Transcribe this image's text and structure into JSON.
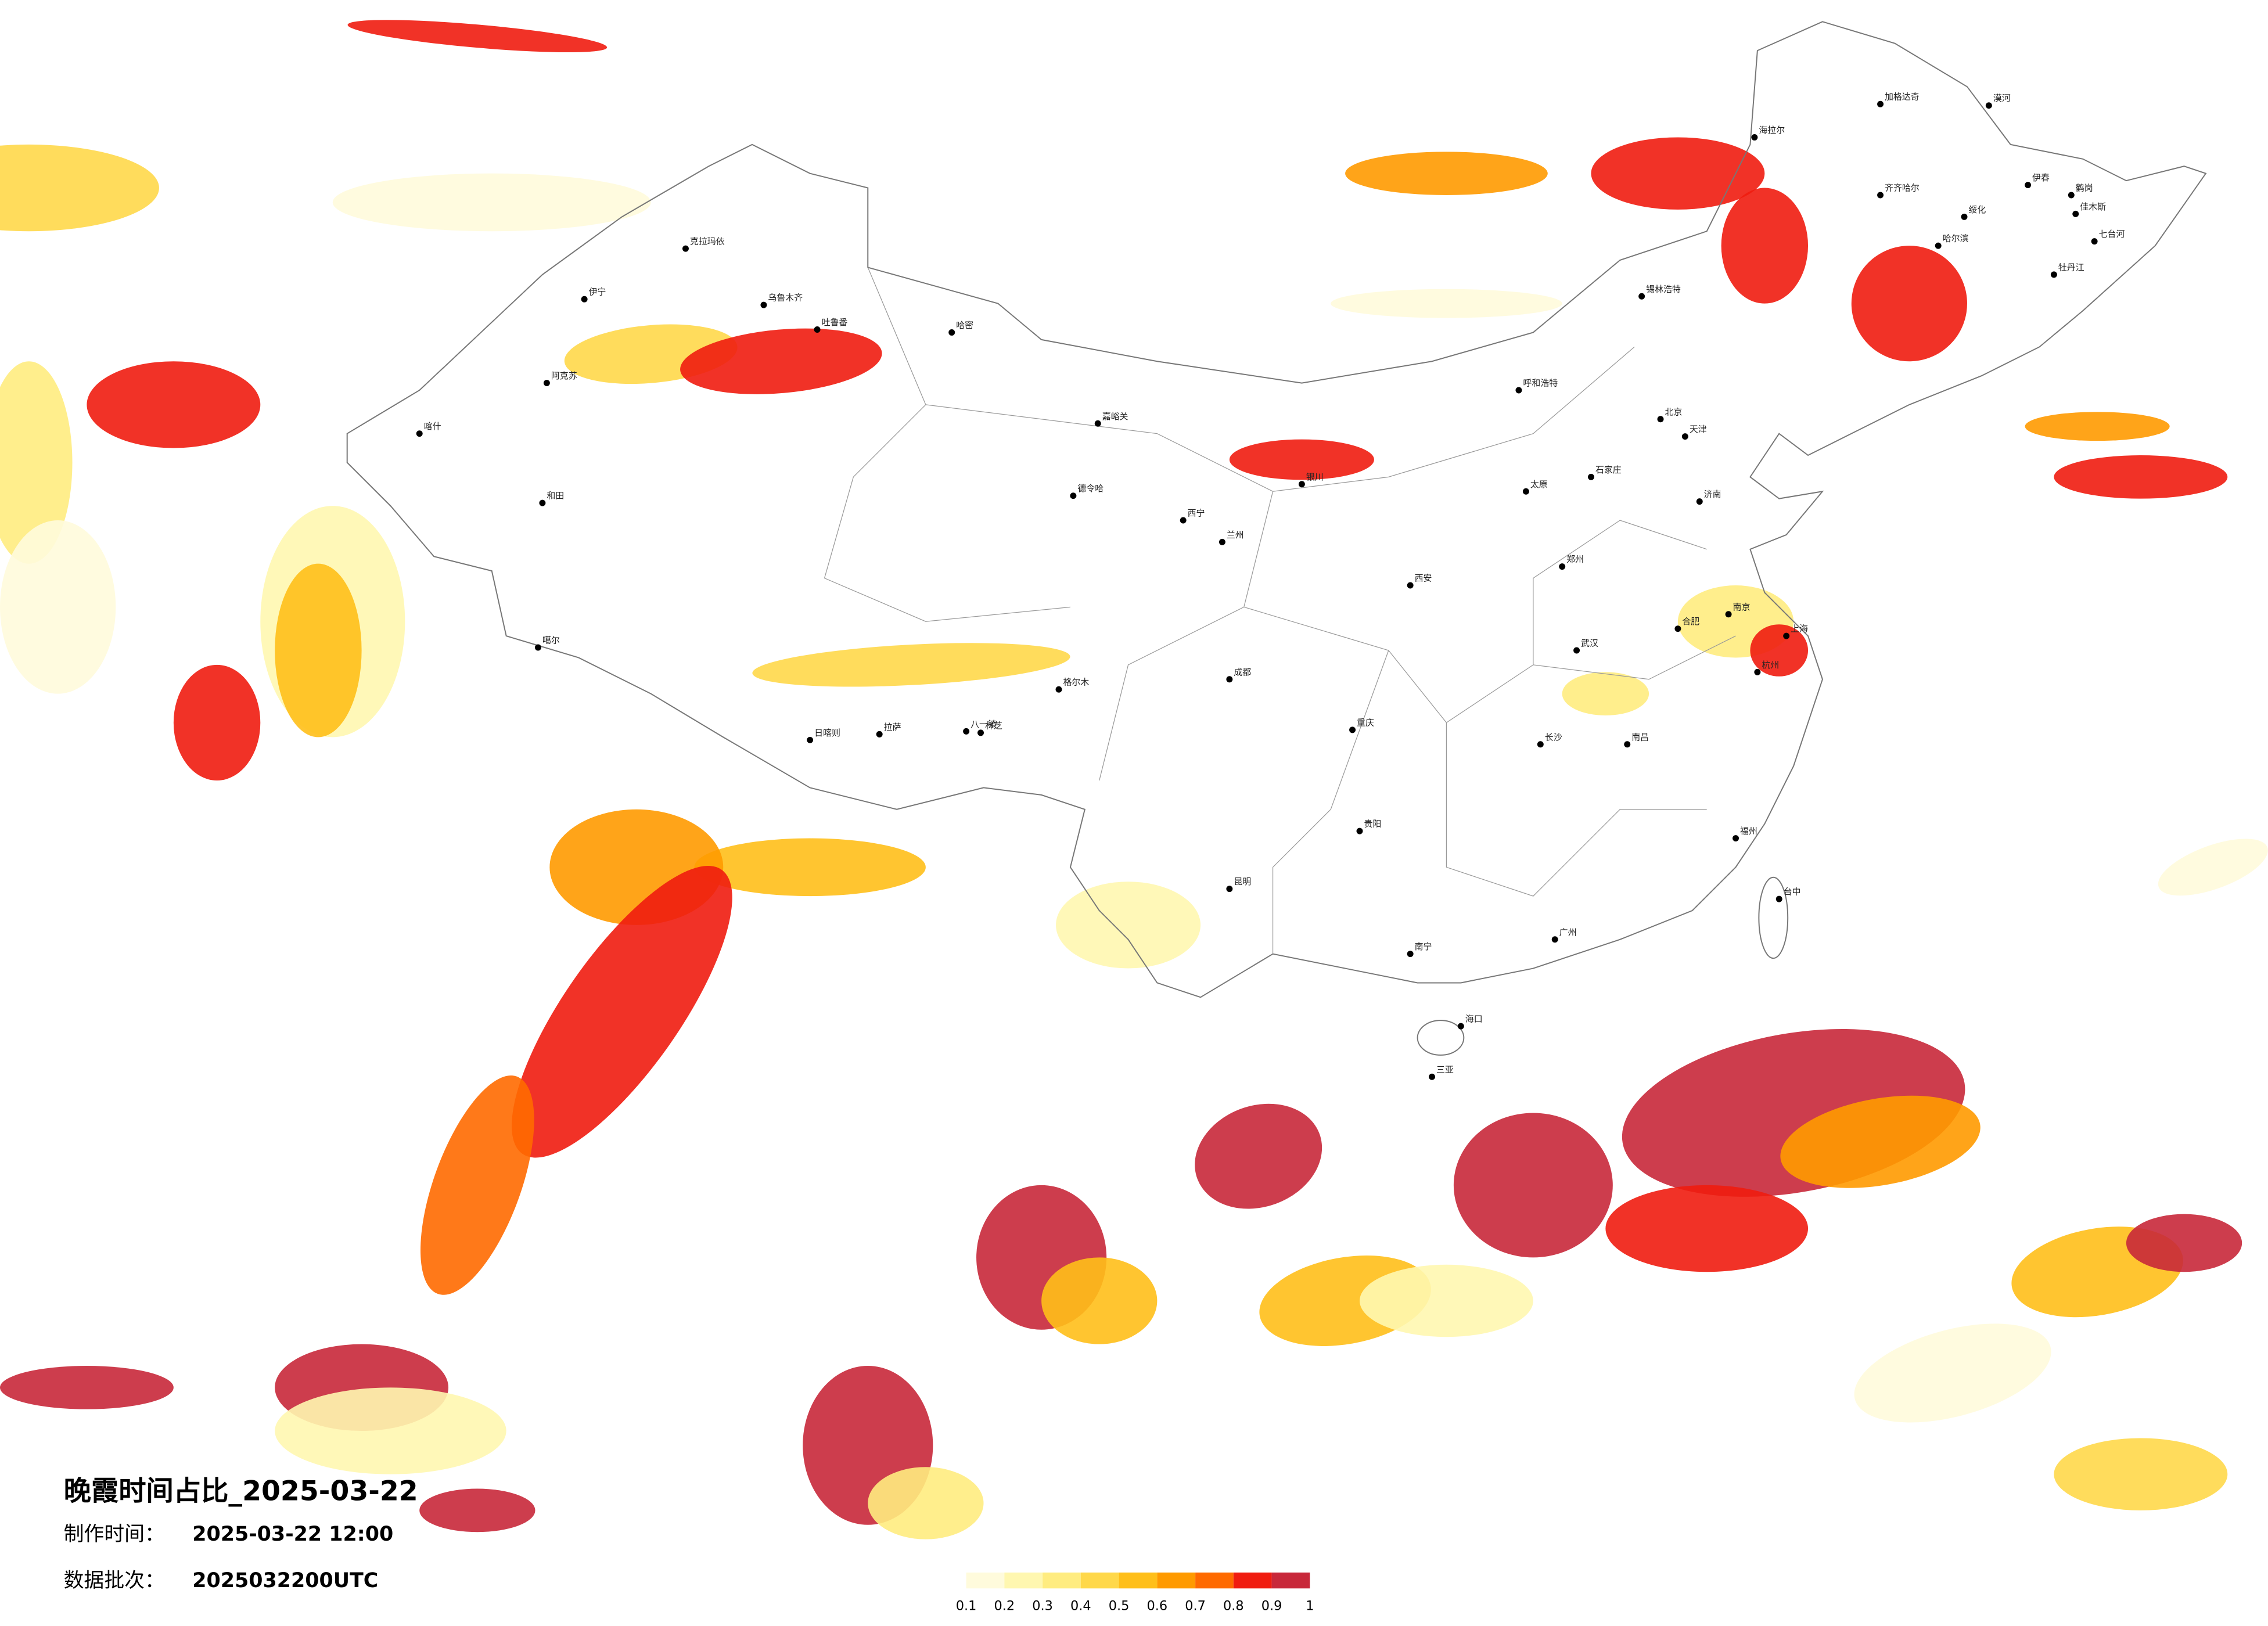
{
  "title": "晚霞时间占比_2025-03-22",
  "info": [
    {
      "label": "制作时间：",
      "value": "2025-03-22 12:00"
    },
    {
      "label": "数据批次：",
      "value": "2025032200UTC"
    }
  ],
  "legend": {
    "colors": [
      "#fffbdc",
      "#fff7b0",
      "#ffec80",
      "#ffd84a",
      "#ffbf1a",
      "#ff9a00",
      "#ff6a00",
      "#f01c10",
      "#c8283a"
    ],
    "ticks": [
      0.1,
      0.2,
      0.3,
      0.4,
      0.5,
      0.6,
      0.7,
      0.8,
      0.9,
      1
    ]
  },
  "cities": [
    "漠河",
    "加格达奇",
    "海拉尔",
    "齐齐哈尔",
    "伊春",
    "鹤岗",
    "佳木斯",
    "七台河",
    "绥化",
    "哈尔滨",
    "牡丹江",
    "锡林浩特",
    "克拉玛依",
    "伊宁",
    "乌鲁木齐",
    "吐鲁番",
    "哈密",
    "阿克苏",
    "喀什",
    "和田",
    "嘉峪关",
    "德令哈",
    "格尔木",
    "拉萨",
    "日喀则",
    "八一镇",
    "林芝",
    "噶尔",
    "呼和浩特",
    "北京",
    "天津",
    "石家庄",
    "太原",
    "郑州",
    "济南",
    "西安",
    "兰州",
    "西宁",
    "银川",
    "成都",
    "重庆",
    "武汉",
    "南京",
    "上海",
    "杭州",
    "合肥",
    "长沙",
    "南昌",
    "福州",
    "广州",
    "南宁",
    "海口",
    "昆明",
    "贵阳",
    "台中",
    "三亚"
  ]
}
